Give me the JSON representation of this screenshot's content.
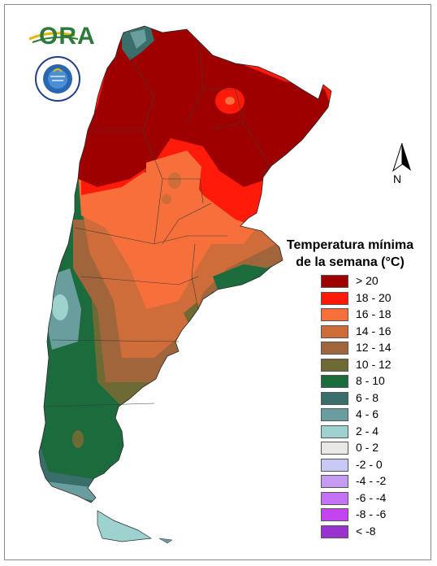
{
  "logo": {
    "text": "ORA",
    "alt_text": "ORA logo"
  },
  "seal": {
    "text": "SERVICIO METEOROLÓGICO NACIONAL · ARGENTINA"
  },
  "north_arrow": {
    "label": "N"
  },
  "legend": {
    "title_line1": "Temperatura mínima",
    "title_line2": "de la semana (°C)",
    "items": [
      {
        "label": "> 20",
        "color": "#9e0000"
      },
      {
        "label": "18 - 20",
        "color": "#ff1a0a"
      },
      {
        "label": "16 - 18",
        "color": "#f7703c"
      },
      {
        "label": "14 - 16",
        "color": "#cf6d3a"
      },
      {
        "label": "12 - 14",
        "color": "#a0653a"
      },
      {
        "label": "10 - 12",
        "color": "#6e6a35"
      },
      {
        "label": "8 - 10",
        "color": "#1b6b3c"
      },
      {
        "label": "6 - 8",
        "color": "#3a6e6a"
      },
      {
        "label": "4 - 6",
        "color": "#6a9e9e"
      },
      {
        "label": "2 - 4",
        "color": "#9ed2cf"
      },
      {
        "label": "0 - 2",
        "color": "#e9e8e4"
      },
      {
        "label": "-2 - 0",
        "color": "#c9c9f6"
      },
      {
        "label": "-4 - -2",
        "color": "#c69cf3"
      },
      {
        "label": "-6 - -4",
        "color": "#c772f4"
      },
      {
        "label": "-8 - -6",
        "color": "#c444ef"
      },
      {
        "label": "< -8",
        "color": "#9a32cf"
      }
    ]
  },
  "map": {
    "region": "Argentina",
    "zones": [
      {
        "name": "north",
        "range": "> 20",
        "color": "#9e0000"
      },
      {
        "name": "center-north",
        "range": "18 - 20",
        "color": "#ff1a0a"
      },
      {
        "name": "center",
        "range": "16 - 18",
        "color": "#f7703c"
      },
      {
        "name": "pampas",
        "range": "14 - 16",
        "color": "#cf6d3a"
      },
      {
        "name": "south-center",
        "range": "12 - 14",
        "color": "#a0653a"
      },
      {
        "name": "patagonia-east",
        "range": "10 - 12",
        "color": "#6e6a35"
      },
      {
        "name": "patagonia",
        "range": "8 - 10",
        "color": "#1b6b3c"
      },
      {
        "name": "andes-south",
        "range": "6 - 8",
        "color": "#3a6e6a"
      },
      {
        "name": "andes-high",
        "range": "4 - 6",
        "color": "#6a9e9e"
      },
      {
        "name": "tierra-del-fuego",
        "range": "2 - 4",
        "color": "#9ed2cf"
      }
    ]
  }
}
